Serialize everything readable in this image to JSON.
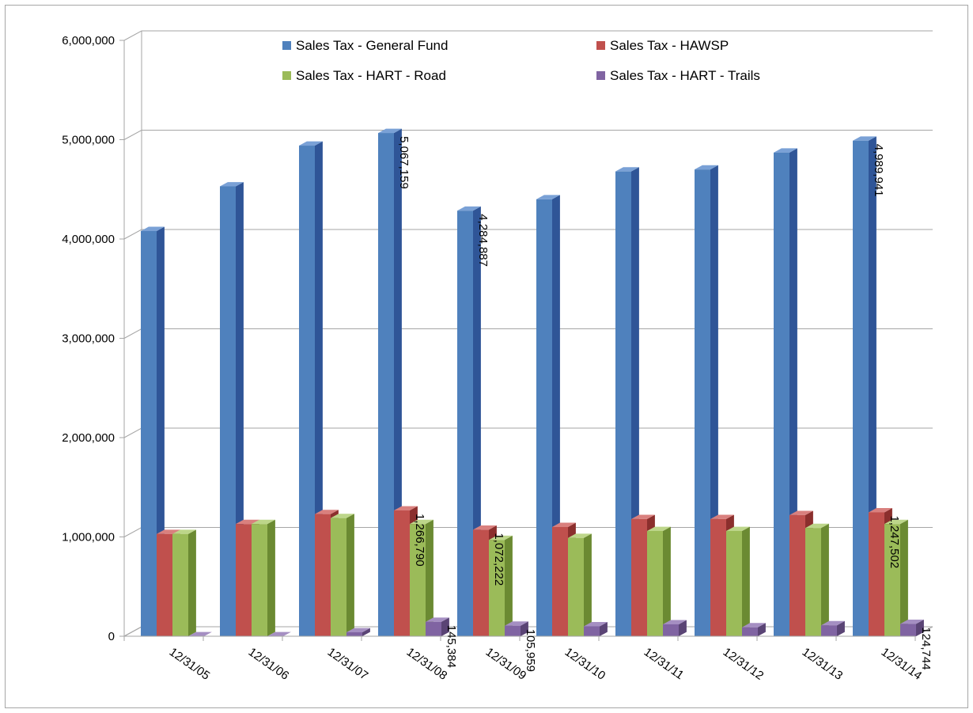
{
  "chart_data": {
    "type": "bar",
    "title": "",
    "xlabel": "",
    "ylabel": "",
    "ylim": [
      0,
      6000000
    ],
    "yticks": [
      0,
      1000000,
      2000000,
      3000000,
      4000000,
      5000000,
      6000000
    ],
    "ytick_labels": [
      "0",
      "1,000,000",
      "2,000,000",
      "3,000,000",
      "4,000,000",
      "5,000,000",
      "6,000,000"
    ],
    "grid": true,
    "legend_position": "top-inside",
    "categories": [
      "12/31/05",
      "12/31/06",
      "12/31/07",
      "12/31/08",
      "12/31/09",
      "12/31/10",
      "12/31/11",
      "12/31/12",
      "12/31/13",
      "12/31/14"
    ],
    "series": [
      {
        "name": "Sales Tax - General Fund",
        "color": "#4f81bd",
        "side": "#2f5597",
        "top": "#7aa1d6",
        "values": [
          4080000,
          4530000,
          4940000,
          5067159,
          4284887,
          4400000,
          4680000,
          4700000,
          4870000,
          4989941
        ]
      },
      {
        "name": "Sales Tax - HAWSP",
        "color": "#c0504d",
        "side": "#8b2f2d",
        "top": "#d9807e",
        "values": [
          1030000,
          1130000,
          1230000,
          1266790,
          1072222,
          1100000,
          1180000,
          1180000,
          1220000,
          1247502
        ]
      },
      {
        "name": "Sales Tax - HART - Road",
        "color": "#9bbb59",
        "side": "#6b8a32",
        "top": "#bdd68a",
        "values": [
          1030000,
          1130000,
          1190000,
          1130000,
          970000,
          990000,
          1060000,
          1060000,
          1090000,
          1130000
        ]
      },
      {
        "name": "Sales Tax - HART - Trails",
        "color": "#8064a2",
        "side": "#5a4475",
        "top": "#a58fc2",
        "values": [
          0,
          0,
          40000,
          145384,
          105959,
          100000,
          120000,
          90000,
          110000,
          124744
        ]
      }
    ],
    "data_labels": [
      {
        "series": 0,
        "index": 3,
        "text": "5,067,159"
      },
      {
        "series": 0,
        "index": 4,
        "text": "4,284,887"
      },
      {
        "series": 0,
        "index": 9,
        "text": "4,989,941"
      },
      {
        "series": 1,
        "index": 3,
        "text": "1,266,790"
      },
      {
        "series": 1,
        "index": 4,
        "text": "1,072,222"
      },
      {
        "series": 1,
        "index": 9,
        "text": "1,247,502"
      },
      {
        "series": 3,
        "index": 3,
        "text": "145,384"
      },
      {
        "series": 3,
        "index": 4,
        "text": "105,959"
      },
      {
        "series": 3,
        "index": 9,
        "text": "124,744"
      }
    ]
  }
}
